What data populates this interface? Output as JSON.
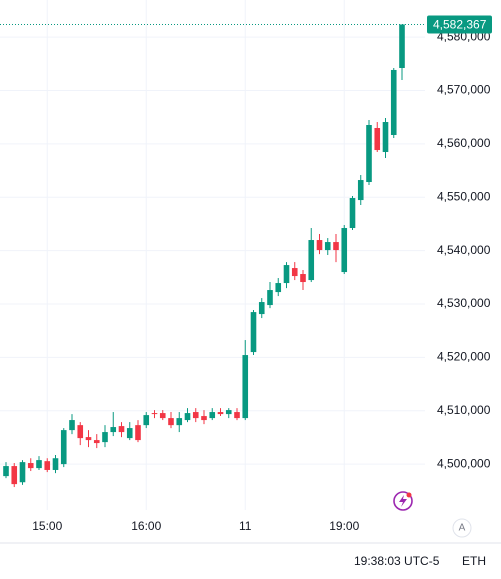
{
  "chart_data": {
    "type": "candlestick",
    "categories": [
      null,
      null,
      null,
      null,
      null,
      "15:00",
      null,
      null,
      null,
      null,
      null,
      null,
      null,
      null,
      null,
      null,
      null,
      "16:00",
      null,
      null,
      null,
      null,
      null,
      null,
      null,
      null,
      null,
      null,
      null,
      "11",
      null,
      null,
      null,
      null,
      null,
      null,
      null,
      null,
      null,
      null,
      null,
      "19:00",
      null,
      null,
      null,
      null,
      null,
      null,
      null
    ],
    "open": [
      4497750,
      4499630,
      4496600,
      4500200,
      4499250,
      4500550,
      4498900,
      4500000,
      4506370,
      4507300,
      4505060,
      4504500,
      4504120,
      4506000,
      4507120,
      4504870,
      4507300,
      4507300,
      4509560,
      4509560,
      4508620,
      4507300,
      4508250,
      4509750,
      4509000,
      4508620,
      4509750,
      4509370,
      4509750,
      4508620,
      4520990,
      4528110,
      4529800,
      4532230,
      4533920,
      4536730,
      4535610,
      4534480,
      4541980,
      4540100,
      4541600,
      4535980,
      4544230,
      4549470,
      4552850,
      4562970,
      4558470,
      4561660,
      4574210
    ],
    "close": [
      4499630,
      4496250,
      4500370,
      4499250,
      4500750,
      4498900,
      4501100,
      4506370,
      4508250,
      4504870,
      4504500,
      4503940,
      4506000,
      4506940,
      4506000,
      4506750,
      4504500,
      4509180,
      4509370,
      4508620,
      4507300,
      4508620,
      4509560,
      4508620,
      4508250,
      4509750,
      4509370,
      4510120,
      4508620,
      4520430,
      4528480,
      4530360,
      4532610,
      4533920,
      4537290,
      4535230,
      4534110,
      4541980,
      4540100,
      4541600,
      4540100,
      4544230,
      4549850,
      4553220,
      4563530,
      4558840,
      4564090,
      4573840,
      4582367
    ],
    "high": [
      4500370,
      4500200,
      4500750,
      4501100,
      4501500,
      4501100,
      4501700,
      4506750,
      4509370,
      4507870,
      4506370,
      4505620,
      4507300,
      4509750,
      4507870,
      4507870,
      4508250,
      4509750,
      4510120,
      4510120,
      4509750,
      4509750,
      4510490,
      4510490,
      4510120,
      4510490,
      4510490,
      4510490,
      4510490,
      4523240,
      4528860,
      4531110,
      4534110,
      4534860,
      4537850,
      4537850,
      4536360,
      4544230,
      4543100,
      4542350,
      4543100,
      4544790,
      4550230,
      4554160,
      4564470,
      4564090,
      4564840,
      4574210,
      4582367
    ],
    "low": [
      4497380,
      4495700,
      4496100,
      4498700,
      4498900,
      4498500,
      4498300,
      4499440,
      4505620,
      4503560,
      4503190,
      4503000,
      4503190,
      4505250,
      4505060,
      4504500,
      4504120,
      4506750,
      4508620,
      4508250,
      4506750,
      4506000,
      4507870,
      4507870,
      4507500,
      4508250,
      4509000,
      4508620,
      4508250,
      4508250,
      4520430,
      4527360,
      4529230,
      4531480,
      4532980,
      4534480,
      4532610,
      4534110,
      4539350,
      4539170,
      4537850,
      4535610,
      4543850,
      4548540,
      4552290,
      4558470,
      4557340,
      4561090,
      4571960
    ],
    "up_color": "#089981",
    "down_color": "#f23645",
    "ylim": [
      4491400,
      4586950
    ],
    "yticks": [
      {
        "value": 4500000,
        "label": "4,500,000"
      },
      {
        "value": 4510000,
        "label": "4,510,000"
      },
      {
        "value": 4520000,
        "label": "4,520,000"
      },
      {
        "value": 4530000,
        "label": "4,530,000"
      },
      {
        "value": 4540000,
        "label": "4,540,000"
      },
      {
        "value": 4550000,
        "label": "4,550,000"
      },
      {
        "value": 4560000,
        "label": "4,560,000"
      },
      {
        "value": 4570000,
        "label": "4,570,000"
      },
      {
        "value": 4580000,
        "label": "4,580,000"
      }
    ],
    "grid": true,
    "last_price": {
      "value": 4582367,
      "label": "4,582,367"
    },
    "status": {
      "clock": "19:38:03 UTC-5",
      "symbol": "ETH",
      "auto": "A"
    }
  }
}
